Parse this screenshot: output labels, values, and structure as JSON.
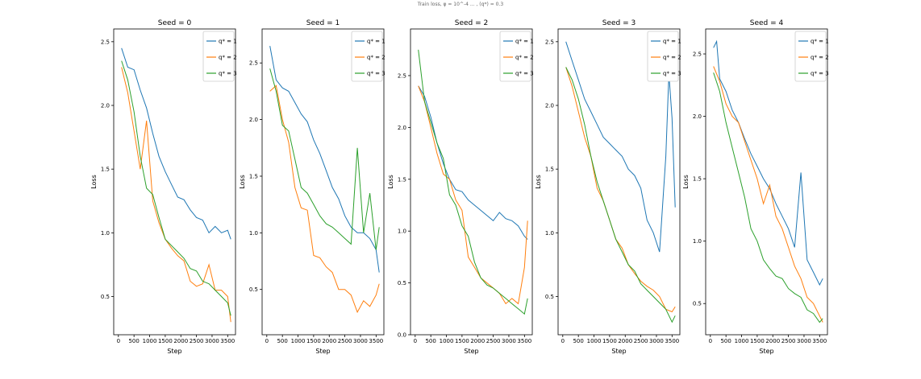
{
  "suptitle": "Train loss, φ = 10^-4 ... , (q*) = 0.3",
  "chart_data": [
    {
      "type": "line",
      "title": "Seed = 0",
      "xlabel": "Step",
      "ylabel": "Loss",
      "xlim": [
        -150,
        3750
      ],
      "ylim": [
        0.2,
        2.6
      ],
      "xticks": [
        0,
        500,
        1000,
        1500,
        2000,
        2500,
        3000,
        3500
      ],
      "yticks": [
        0.5,
        1.0,
        1.5,
        2.0,
        2.5
      ],
      "ytick_labels": [
        "0.5",
        "1.0",
        "1.5",
        "2.0",
        "2.5"
      ],
      "legend": "top-right",
      "series": [
        {
          "name": "q* = 1",
          "color": "#1f77b4",
          "x": [
            100,
            300,
            500,
            700,
            900,
            1100,
            1300,
            1500,
            1700,
            1900,
            2100,
            2300,
            2500,
            2700,
            2900,
            3100,
            3300,
            3500,
            3600
          ],
          "values": [
            2.45,
            2.3,
            2.28,
            2.12,
            1.98,
            1.78,
            1.6,
            1.48,
            1.38,
            1.28,
            1.26,
            1.18,
            1.12,
            1.1,
            1.0,
            1.05,
            1.0,
            1.02,
            0.95
          ]
        },
        {
          "name": "q* = 2",
          "color": "#ff7f0e",
          "x": [
            100,
            300,
            500,
            700,
            900,
            1100,
            1300,
            1500,
            1700,
            1900,
            2100,
            2300,
            2500,
            2700,
            2900,
            3100,
            3300,
            3500,
            3600
          ],
          "values": [
            2.3,
            2.1,
            1.8,
            1.5,
            1.88,
            1.25,
            1.08,
            0.95,
            0.88,
            0.82,
            0.78,
            0.62,
            0.58,
            0.6,
            0.75,
            0.55,
            0.55,
            0.5,
            0.3
          ]
        },
        {
          "name": "q* = 3",
          "color": "#2ca02c",
          "x": [
            100,
            300,
            500,
            700,
            900,
            1100,
            1300,
            1500,
            1700,
            1900,
            2100,
            2300,
            2500,
            2700,
            2900,
            3100,
            3300,
            3500,
            3600
          ],
          "values": [
            2.35,
            2.2,
            1.95,
            1.6,
            1.35,
            1.3,
            1.12,
            0.95,
            0.9,
            0.85,
            0.8,
            0.72,
            0.7,
            0.62,
            0.6,
            0.55,
            0.5,
            0.45,
            0.35
          ]
        }
      ]
    },
    {
      "type": "line",
      "title": "Seed = 1",
      "xlabel": "Step",
      "ylabel": "Loss",
      "xlim": [
        -150,
        3750
      ],
      "ylim": [
        0.1,
        2.8
      ],
      "xticks": [
        0,
        500,
        1000,
        1500,
        2000,
        2500,
        3000,
        3500
      ],
      "yticks": [
        0.5,
        1.0,
        1.5,
        2.0,
        2.5
      ],
      "ytick_labels": [
        "0.5",
        "1.0",
        "1.5",
        "2.0",
        "2.5"
      ],
      "legend": "top-right",
      "series": [
        {
          "name": "q* = 1",
          "color": "#1f77b4",
          "x": [
            100,
            300,
            500,
            700,
            900,
            1100,
            1300,
            1500,
            1700,
            1900,
            2100,
            2300,
            2500,
            2700,
            2900,
            3100,
            3300,
            3500,
            3600
          ],
          "values": [
            2.65,
            2.35,
            2.28,
            2.25,
            2.15,
            2.05,
            1.98,
            1.82,
            1.7,
            1.55,
            1.4,
            1.3,
            1.15,
            1.05,
            1.0,
            1.0,
            0.95,
            0.85,
            0.65
          ]
        },
        {
          "name": "q* = 2",
          "color": "#ff7f0e",
          "x": [
            100,
            300,
            500,
            700,
            900,
            1100,
            1300,
            1500,
            1700,
            1900,
            2100,
            2300,
            2500,
            2700,
            2900,
            3100,
            3300,
            3500,
            3600
          ],
          "values": [
            2.25,
            2.3,
            2.0,
            1.8,
            1.4,
            1.22,
            1.2,
            0.8,
            0.78,
            0.7,
            0.65,
            0.5,
            0.5,
            0.45,
            0.3,
            0.4,
            0.35,
            0.45,
            0.55
          ]
        },
        {
          "name": "q* = 3",
          "color": "#2ca02c",
          "x": [
            100,
            300,
            500,
            700,
            900,
            1100,
            1300,
            1500,
            1700,
            1900,
            2100,
            2300,
            2500,
            2700,
            2900,
            3100,
            3300,
            3500,
            3600
          ],
          "values": [
            2.45,
            2.25,
            1.95,
            1.9,
            1.65,
            1.4,
            1.35,
            1.25,
            1.15,
            1.08,
            1.05,
            1.0,
            0.95,
            0.9,
            1.75,
            1.0,
            1.35,
            0.85,
            1.05
          ]
        }
      ]
    },
    {
      "type": "line",
      "title": "Seed = 2",
      "xlabel": "Step",
      "ylabel": "Loss",
      "xlim": [
        -150,
        3750
      ],
      "ylim": [
        0.0,
        2.95
      ],
      "xticks": [
        0,
        500,
        1000,
        1500,
        2000,
        2500,
        3000,
        3500
      ],
      "yticks": [
        0.0,
        0.5,
        1.0,
        1.5,
        2.0,
        2.5
      ],
      "ytick_labels": [
        "0.0",
        "0.5",
        "1.0",
        "1.5",
        "2.0",
        "2.5"
      ],
      "legend": "top-right",
      "series": [
        {
          "name": "q* = 1",
          "color": "#1f77b4",
          "x": [
            100,
            300,
            500,
            700,
            900,
            1100,
            1300,
            1500,
            1700,
            1900,
            2100,
            2300,
            2500,
            2700,
            2900,
            3100,
            3300,
            3500,
            3600
          ],
          "values": [
            2.4,
            2.3,
            2.1,
            1.85,
            1.65,
            1.5,
            1.4,
            1.38,
            1.3,
            1.25,
            1.2,
            1.15,
            1.1,
            1.18,
            1.12,
            1.1,
            1.05,
            0.95,
            0.92
          ]
        },
        {
          "name": "q* = 2",
          "color": "#ff7f0e",
          "x": [
            100,
            300,
            500,
            700,
            900,
            1100,
            1300,
            1500,
            1700,
            1900,
            2100,
            2300,
            2500,
            2700,
            2900,
            3100,
            3300,
            3500,
            3600
          ],
          "values": [
            2.4,
            2.25,
            2.0,
            1.75,
            1.55,
            1.5,
            1.3,
            1.2,
            0.75,
            0.65,
            0.55,
            0.5,
            0.45,
            0.4,
            0.3,
            0.35,
            0.3,
            0.65,
            1.1
          ]
        },
        {
          "name": "q* = 3",
          "color": "#2ca02c",
          "x": [
            100,
            300,
            500,
            700,
            900,
            1100,
            1300,
            1500,
            1700,
            1900,
            2100,
            2300,
            2500,
            2700,
            2900,
            3100,
            3300,
            3500,
            3600
          ],
          "values": [
            2.75,
            2.25,
            2.05,
            1.85,
            1.7,
            1.35,
            1.25,
            1.05,
            0.95,
            0.7,
            0.55,
            0.48,
            0.45,
            0.4,
            0.35,
            0.3,
            0.25,
            0.2,
            0.35
          ]
        }
      ]
    },
    {
      "type": "line",
      "title": "Seed = 3",
      "xlabel": "Step",
      "ylabel": "Loss",
      "xlim": [
        -150,
        3750
      ],
      "ylim": [
        0.2,
        2.6
      ],
      "xticks": [
        0,
        500,
        1000,
        1500,
        2000,
        2500,
        3000,
        3500
      ],
      "yticks": [
        0.5,
        1.0,
        1.5,
        2.0,
        2.5
      ],
      "ytick_labels": [
        "0.5",
        "1.0",
        "1.5",
        "2.0",
        "2.5"
      ],
      "legend": "top-right",
      "series": [
        {
          "name": "q* = 1",
          "color": "#1f77b4",
          "x": [
            100,
            300,
            500,
            700,
            900,
            1100,
            1300,
            1500,
            1700,
            1900,
            2100,
            2300,
            2500,
            2700,
            2900,
            3100,
            3300,
            3400,
            3500,
            3600
          ],
          "values": [
            2.5,
            2.35,
            2.2,
            2.05,
            1.95,
            1.85,
            1.75,
            1.7,
            1.65,
            1.6,
            1.5,
            1.45,
            1.35,
            1.1,
            1.0,
            0.85,
            1.6,
            2.25,
            1.9,
            1.2
          ]
        },
        {
          "name": "q* = 2",
          "color": "#ff7f0e",
          "x": [
            100,
            300,
            500,
            700,
            900,
            1100,
            1300,
            1500,
            1700,
            1900,
            2100,
            2300,
            2500,
            2700,
            2900,
            3100,
            3300,
            3500,
            3600
          ],
          "values": [
            2.3,
            2.15,
            1.95,
            1.75,
            1.6,
            1.35,
            1.25,
            1.1,
            0.95,
            0.88,
            0.75,
            0.68,
            0.62,
            0.58,
            0.55,
            0.5,
            0.4,
            0.38,
            0.42
          ]
        },
        {
          "name": "q* = 3",
          "color": "#2ca02c",
          "x": [
            100,
            300,
            500,
            700,
            900,
            1100,
            1300,
            1500,
            1700,
            1900,
            2100,
            2300,
            2500,
            2700,
            2900,
            3100,
            3300,
            3500,
            3600
          ],
          "values": [
            2.3,
            2.2,
            2.05,
            1.85,
            1.6,
            1.4,
            1.25,
            1.1,
            0.95,
            0.85,
            0.75,
            0.7,
            0.6,
            0.55,
            0.5,
            0.45,
            0.4,
            0.3,
            0.35
          ]
        }
      ]
    },
    {
      "type": "line",
      "title": "Seed = 4",
      "xlabel": "Step",
      "ylabel": "Loss",
      "xlim": [
        -150,
        3750
      ],
      "ylim": [
        0.25,
        2.7
      ],
      "xticks": [
        0,
        500,
        1000,
        1500,
        2000,
        2500,
        3000,
        3500
      ],
      "yticks": [
        0.5,
        1.0,
        1.5,
        2.0,
        2.5
      ],
      "ytick_labels": [
        "0.5",
        "1.0",
        "1.5",
        "2.0",
        "2.5"
      ],
      "legend": "top-right",
      "series": [
        {
          "name": "q* = 1",
          "color": "#1f77b4",
          "x": [
            100,
            200,
            300,
            500,
            700,
            900,
            1100,
            1300,
            1500,
            1700,
            1900,
            2100,
            2300,
            2500,
            2700,
            2900,
            3100,
            3300,
            3500,
            3600
          ],
          "values": [
            2.55,
            2.6,
            2.3,
            2.2,
            2.05,
            1.95,
            1.82,
            1.7,
            1.6,
            1.5,
            1.42,
            1.3,
            1.2,
            1.1,
            0.95,
            1.55,
            0.85,
            0.75,
            0.65,
            0.7
          ]
        },
        {
          "name": "q* = 2",
          "color": "#ff7f0e",
          "x": [
            100,
            300,
            500,
            700,
            900,
            1100,
            1300,
            1500,
            1700,
            1900,
            2100,
            2300,
            2500,
            2700,
            2900,
            3100,
            3300,
            3500,
            3600
          ],
          "values": [
            2.4,
            2.28,
            2.1,
            2.0,
            1.95,
            1.8,
            1.65,
            1.5,
            1.3,
            1.45,
            1.2,
            1.1,
            0.95,
            0.8,
            0.7,
            0.55,
            0.5,
            0.4,
            0.35
          ]
        },
        {
          "name": "q* = 3",
          "color": "#2ca02c",
          "x": [
            100,
            300,
            500,
            700,
            900,
            1100,
            1300,
            1500,
            1700,
            1900,
            2100,
            2300,
            2500,
            2700,
            2900,
            3100,
            3300,
            3500,
            3600
          ],
          "values": [
            2.35,
            2.2,
            1.95,
            1.75,
            1.55,
            1.35,
            1.1,
            1.0,
            0.85,
            0.78,
            0.72,
            0.7,
            0.62,
            0.58,
            0.55,
            0.45,
            0.42,
            0.35,
            0.38
          ]
        }
      ]
    }
  ]
}
